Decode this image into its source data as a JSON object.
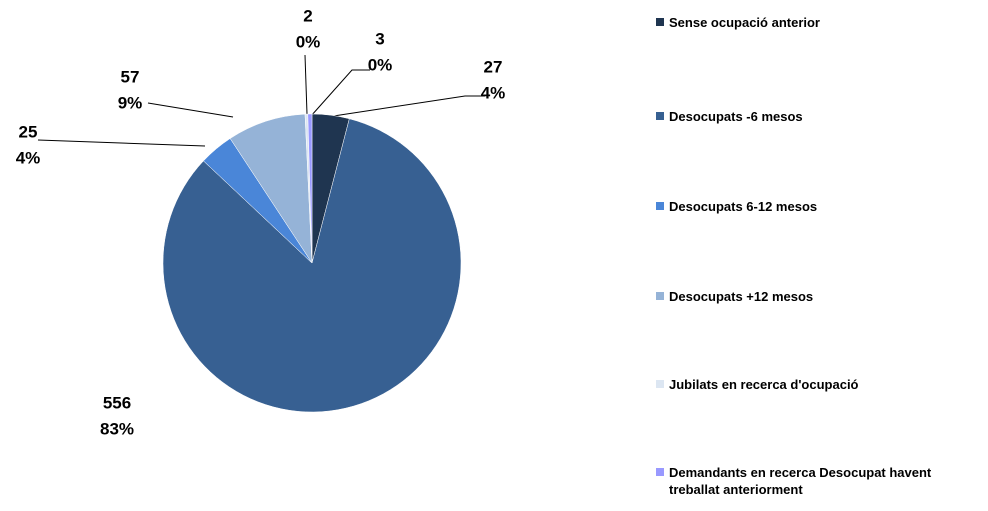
{
  "chart_data": {
    "type": "pie",
    "categories": [
      "Sense ocupació anterior",
      "Desocupats -6 mesos",
      "Desocupats 6-12 mesos",
      "Desocupats +12 mesos",
      "Jubilats en recerca d'ocupació",
      "Demandants en recerca Desocupat havent treballat anteriorment"
    ],
    "values": [
      27,
      556,
      25,
      57,
      2,
      3
    ],
    "percent_labels": [
      "4%",
      "83%",
      "4%",
      "9%",
      "0%",
      "0%"
    ],
    "colors": [
      "#1f3550",
      "#376092",
      "#4a86d8",
      "#95b3d7",
      "#dce6f2",
      "#9999ff"
    ],
    "legend": "right"
  }
}
